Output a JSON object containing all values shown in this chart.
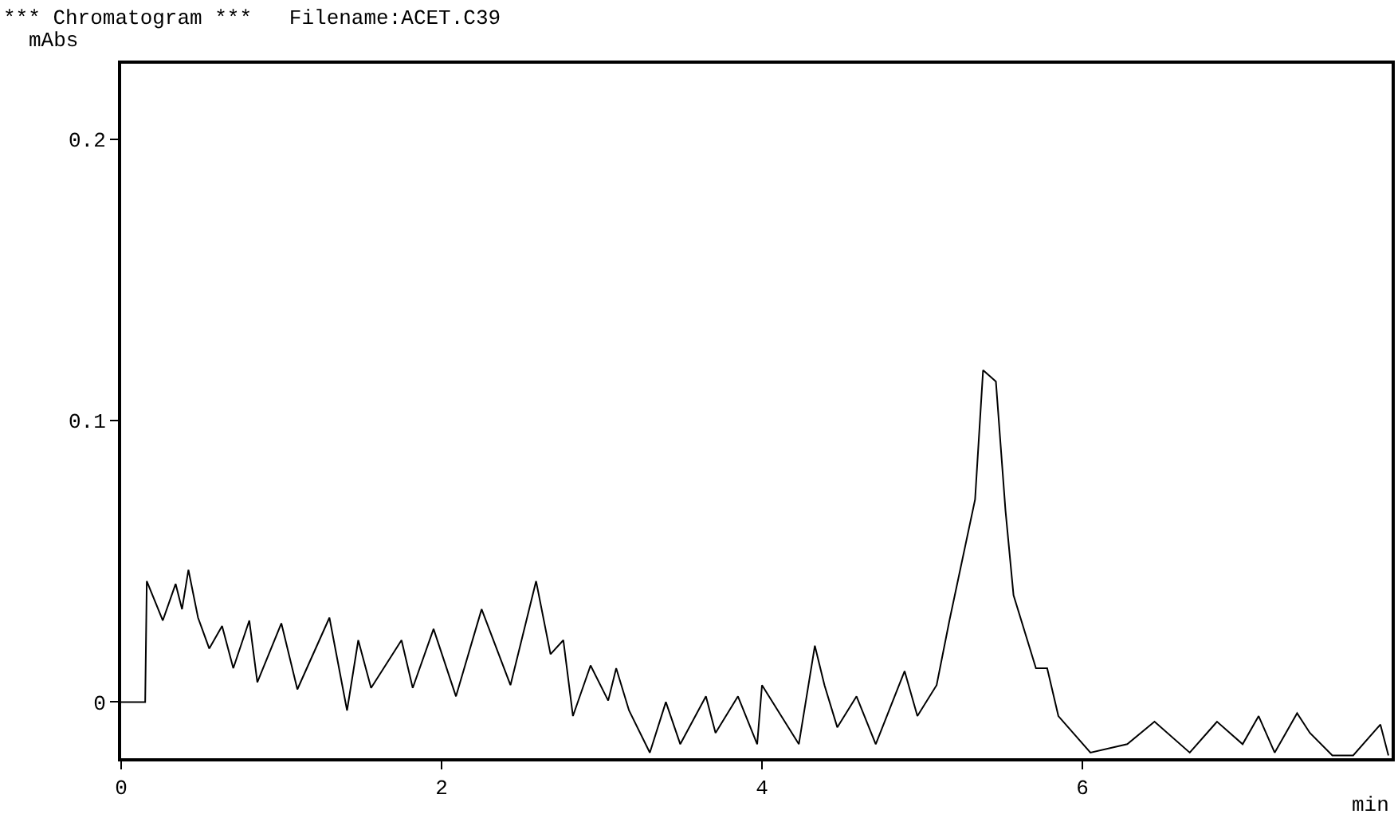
{
  "chart_data": {
    "type": "line",
    "title": "*** Chromatogram ***   Filename:ACET.C39",
    "ylabel": "mAbs",
    "xlabel": "min",
    "x": [
      0,
      0.15,
      0.16,
      0.26,
      0.34,
      0.38,
      0.42,
      0.48,
      0.55,
      0.63,
      0.7,
      0.8,
      0.85,
      1.0,
      1.1,
      1.3,
      1.41,
      1.48,
      1.56,
      1.75,
      1.82,
      1.95,
      2.09,
      2.25,
      2.43,
      2.59,
      2.68,
      2.76,
      2.82,
      2.93,
      3.04,
      3.09,
      3.17,
      3.3,
      3.4,
      3.49,
      3.65,
      3.71,
      3.85,
      3.97,
      4.0,
      4.23,
      4.33,
      4.39,
      4.47,
      4.59,
      4.71,
      4.89,
      4.97,
      5.09,
      5.17,
      5.33,
      5.38,
      5.46,
      5.52,
      5.57,
      5.71,
      5.78,
      5.85,
      6.05,
      6.28,
      6.45,
      6.67,
      6.84,
      7.0,
      7.1,
      7.2,
      7.34,
      7.42,
      7.56,
      7.69,
      7.86,
      7.91
    ],
    "values": [
      0,
      0,
      0.043,
      0.029,
      0.042,
      0.033,
      0.047,
      0.03,
      0.019,
      0.027,
      0.012,
      0.029,
      0.007,
      0.028,
      0.0045,
      0.03,
      -0.003,
      0.022,
      0.005,
      0.022,
      0.005,
      0.026,
      0.002,
      0.033,
      0.006,
      0.043,
      0.017,
      0.022,
      -0.005,
      0.013,
      0.0005,
      0.012,
      -0.003,
      -0.018,
      0.0,
      -0.015,
      0.002,
      -0.011,
      0.002,
      -0.015,
      0.006,
      -0.015,
      0.02,
      0.006,
      -0.009,
      0.002,
      -0.015,
      0.011,
      -0.005,
      0.006,
      0.029,
      0.072,
      0.118,
      0.114,
      0.068,
      0.038,
      0.012,
      0.012,
      -0.005,
      -0.018,
      -0.015,
      -0.007,
      -0.018,
      -0.007,
      -0.015,
      -0.005,
      -0.018,
      -0.004,
      -0.011,
      -0.019,
      -0.019,
      -0.008,
      -0.019
    ],
    "color": "#000000",
    "xlim": [
      0,
      7.93
    ],
    "ylim": [
      -0.02,
      0.227
    ],
    "xticks": [
      0,
      2,
      4,
      6
    ],
    "yticks": [
      0,
      0.1,
      0.2
    ],
    "marker": "none",
    "line_style": "solid"
  }
}
